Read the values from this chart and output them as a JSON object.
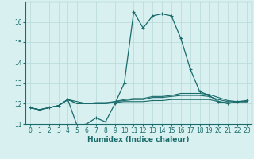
{
  "xlabel": "Humidex (Indice chaleur)",
  "bg_color": "#d8f0f0",
  "grid_color": "#b8d8d8",
  "line_color": "#1a6b6b",
  "xlim": [
    -0.5,
    23.5
  ],
  "ylim": [
    11,
    17
  ],
  "yticks": [
    11,
    12,
    13,
    14,
    15,
    16
  ],
  "xticks": [
    0,
    1,
    2,
    3,
    4,
    5,
    6,
    7,
    8,
    9,
    10,
    11,
    12,
    13,
    14,
    15,
    16,
    17,
    18,
    19,
    20,
    21,
    22,
    23
  ],
  "series": [
    [
      11.8,
      11.7,
      11.8,
      11.9,
      12.2,
      10.9,
      11.0,
      11.3,
      11.1,
      12.0,
      13.0,
      16.5,
      15.7,
      16.3,
      16.4,
      16.3,
      15.2,
      13.7,
      12.6,
      12.4,
      12.1,
      12.0,
      12.1,
      12.15
    ],
    [
      11.8,
      11.7,
      11.8,
      11.9,
      12.2,
      12.1,
      12.0,
      12.05,
      12.05,
      12.1,
      12.2,
      12.25,
      12.25,
      12.35,
      12.35,
      12.4,
      12.5,
      12.5,
      12.5,
      12.45,
      12.3,
      12.15,
      12.1,
      12.1
    ],
    [
      11.8,
      11.7,
      11.8,
      11.9,
      12.2,
      12.0,
      12.0,
      12.0,
      12.0,
      12.1,
      12.15,
      12.2,
      12.2,
      12.3,
      12.3,
      12.35,
      12.4,
      12.4,
      12.4,
      12.35,
      12.2,
      12.1,
      12.1,
      12.1
    ],
    [
      11.8,
      11.7,
      11.8,
      11.9,
      12.2,
      12.0,
      12.0,
      12.0,
      12.0,
      12.05,
      12.1,
      12.1,
      12.1,
      12.15,
      12.15,
      12.2,
      12.2,
      12.2,
      12.2,
      12.2,
      12.1,
      12.05,
      12.05,
      12.05
    ]
  ],
  "marker_series": 0,
  "xlabel_fontsize": 6.5,
  "tick_fontsize": 5.5
}
